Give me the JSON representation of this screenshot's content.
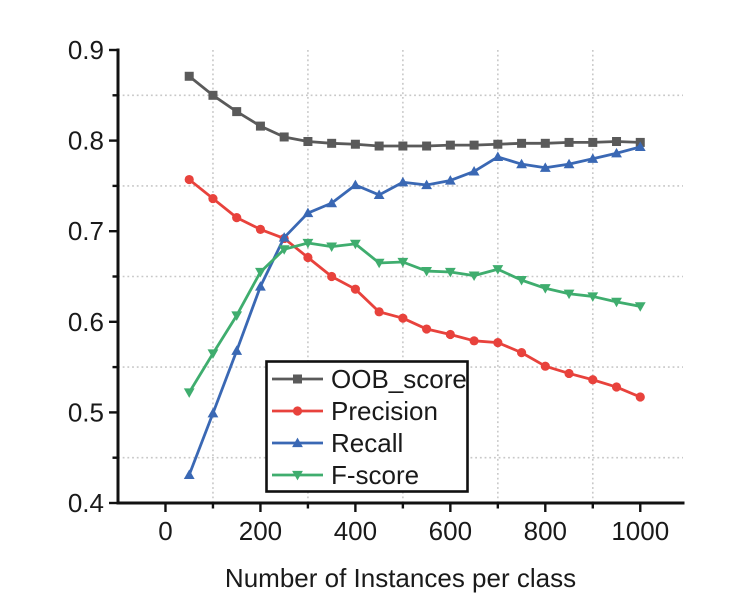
{
  "figure": {
    "background": "#ffffff",
    "text_color": "#1a1a1a",
    "axis_color": "#111111",
    "grid_color": "#c8c8c8"
  },
  "chart_data": {
    "type": "line",
    "title": "",
    "xlabel": "Number of Instances per class",
    "ylabel": "",
    "xlim": [
      -100,
      1090
    ],
    "ylim": [
      0.4,
      0.9
    ],
    "x_major_ticks": [
      0,
      200,
      400,
      600,
      800,
      1000
    ],
    "x_minor_ticks": [
      100,
      300,
      500,
      700,
      900
    ],
    "y_major_ticks": [
      0.4,
      0.5,
      0.6,
      0.7,
      0.8,
      0.9
    ],
    "y_minor_ticks": [
      0.45,
      0.55,
      0.65,
      0.75,
      0.85
    ],
    "grid": "minor-dotted",
    "legend_position": "inside-bottom-center",
    "x": [
      50,
      100,
      150,
      200,
      250,
      300,
      350,
      400,
      450,
      500,
      550,
      600,
      650,
      700,
      750,
      800,
      850,
      900,
      950,
      1000
    ],
    "series": [
      {
        "name": "OOB_score",
        "color": "#5a5a5a",
        "marker": "square",
        "values": [
          0.871,
          0.85,
          0.832,
          0.816,
          0.804,
          0.799,
          0.797,
          0.796,
          0.794,
          0.794,
          0.794,
          0.795,
          0.795,
          0.796,
          0.797,
          0.797,
          0.798,
          0.798,
          0.799,
          0.798
        ]
      },
      {
        "name": "Precision",
        "color": "#e8423c",
        "marker": "circle",
        "values": [
          0.757,
          0.736,
          0.715,
          0.702,
          0.692,
          0.671,
          0.65,
          0.636,
          0.611,
          0.604,
          0.592,
          0.586,
          0.579,
          0.577,
          0.566,
          0.551,
          0.543,
          0.536,
          0.528,
          0.517
        ]
      },
      {
        "name": "Recall",
        "color": "#3a68b4",
        "marker": "triangle-up",
        "values": [
          0.431,
          0.499,
          0.568,
          0.639,
          0.693,
          0.72,
          0.731,
          0.751,
          0.74,
          0.754,
          0.751,
          0.756,
          0.766,
          0.782,
          0.774,
          0.77,
          0.774,
          0.78,
          0.786,
          0.793
        ]
      },
      {
        "name": "F-score",
        "color": "#3fad6e",
        "marker": "triangle-down",
        "values": [
          0.522,
          0.565,
          0.607,
          0.655,
          0.68,
          0.687,
          0.683,
          0.686,
          0.665,
          0.666,
          0.656,
          0.655,
          0.651,
          0.658,
          0.646,
          0.637,
          0.631,
          0.628,
          0.622,
          0.617
        ]
      }
    ],
    "legend": [
      "OOB_score",
      "Precision",
      "Recall",
      "F-score"
    ]
  }
}
